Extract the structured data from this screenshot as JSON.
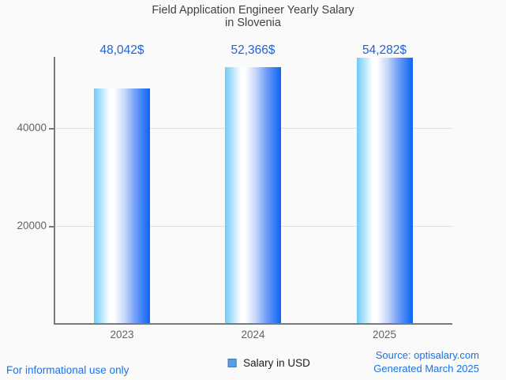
{
  "chart_data": {
    "type": "bar",
    "title": "Field Application Engineer Yearly Salary in Slovenia",
    "title_lines": [
      "Field Application Engineer Yearly Salary",
      "in Slovenia"
    ],
    "categories": [
      "2023",
      "2024",
      "2025"
    ],
    "series": [
      {
        "name": "Salary in USD",
        "values": [
          48042,
          52366,
          54282
        ]
      }
    ],
    "value_labels": [
      "48,042$",
      "52,366$",
      "54,282$"
    ],
    "xlabel": "",
    "ylabel": "",
    "ylim": [
      0,
      55000
    ],
    "yticks": [
      20000,
      40000
    ],
    "ytick_labels": [
      "20000",
      "40000"
    ],
    "grid": true,
    "legend_position": "bottom",
    "bar_gradient_stops": [
      [
        "#6dcbf9",
        "0%"
      ],
      [
        "#ffffff",
        "28%"
      ],
      [
        "#ffffff",
        "36%"
      ],
      [
        "#c3d3fa",
        "56%"
      ],
      [
        "#6f9ef7",
        "74%"
      ],
      [
        "#0d63f2",
        "100%"
      ]
    ]
  },
  "legend": {
    "label": "Salary in USD"
  },
  "footer": {
    "disclaimer": "For informational use only",
    "source": "Source: optisalary.com",
    "generated": "Generated March 2025"
  },
  "colors": {
    "background": "#fafafa",
    "title": "#424242",
    "axis": "#7a7a7a",
    "gridline": "#e0e0e0",
    "axis_label": "#5f6368",
    "value_label": "#1e63d8",
    "footer_link": "#1a73e8",
    "legend_text": "#1b1b1b",
    "legend_swatch_fill": "#5a9de0",
    "legend_swatch_border": "#3c78b4"
  }
}
